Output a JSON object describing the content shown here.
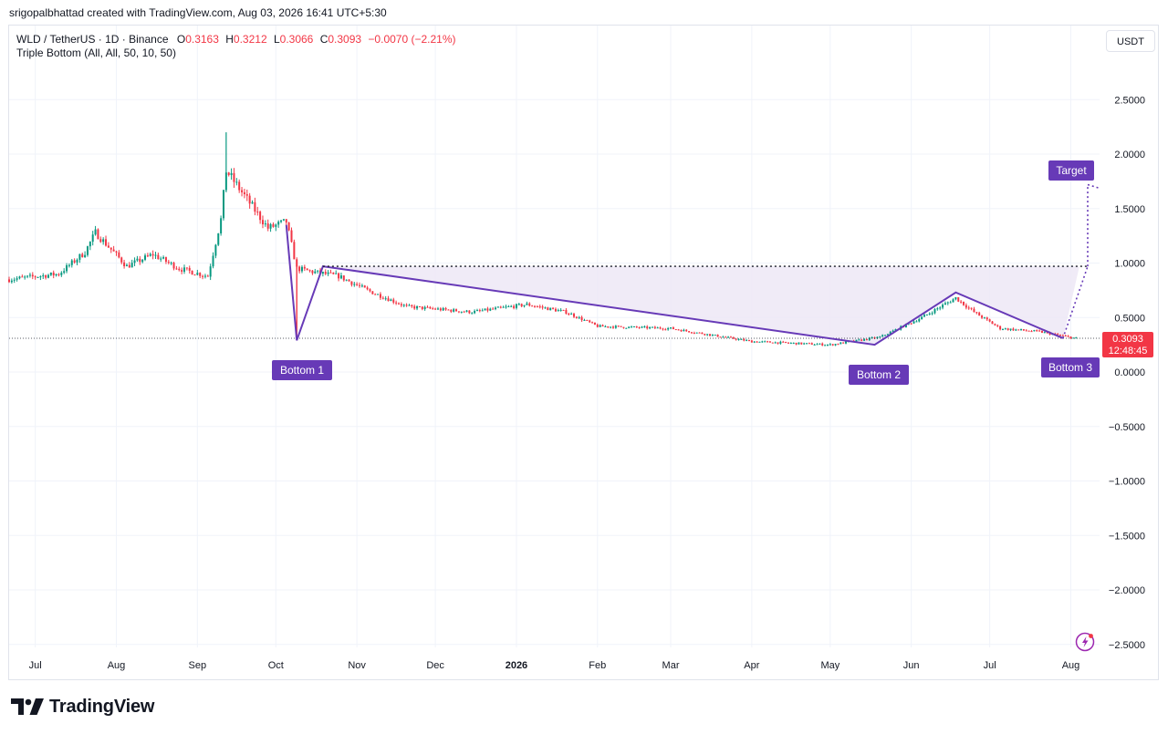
{
  "header": {
    "credit": "srigopalbhattad created with TradingView.com, Aug 03, 2026 16:41 UTC+5:30"
  },
  "legend": {
    "symbol": "WLD / TetherUS · 1D · Binance",
    "open_label": "O",
    "open": "0.3163",
    "high_label": "H",
    "high": "0.3212",
    "low_label": "L",
    "low": "0.3066",
    "close_label": "C",
    "close": "0.3093",
    "change": "−0.0070 (−2.21%)",
    "indicator": "Triple Bottom (All, All, 50, 10, 50)"
  },
  "currency_button": "USDT",
  "brand": {
    "name": "TradingView"
  },
  "price_badge": {
    "price": "0.3093",
    "countdown": "12:48:45",
    "color": "#f23645"
  },
  "colors": {
    "up": "#089981",
    "down": "#f23645",
    "pattern": "#673ab7",
    "fill": "#ede7f6",
    "grid": "#f0f3fa"
  },
  "chart_data": {
    "type": "candlestick",
    "ylim": [
      -2.6,
      2.8
    ],
    "y_ticks": [
      "2.5000",
      "2.0000",
      "1.5000",
      "1.0000",
      "0.5000",
      "0.0000",
      "−0.5000",
      "−1.0000",
      "−1.5000",
      "−2.0000",
      "−2.5000"
    ],
    "y_tick_values": [
      2.5,
      2.0,
      1.5,
      1.0,
      0.5,
      0.0,
      -0.5,
      -1.0,
      -1.5,
      -2.0,
      -2.5
    ],
    "x_ticks": [
      {
        "label": "Jul",
        "date": "2025-07-01",
        "bold": false
      },
      {
        "label": "Aug",
        "date": "2025-08-01",
        "bold": false
      },
      {
        "label": "Sep",
        "date": "2025-09-01",
        "bold": false
      },
      {
        "label": "Oct",
        "date": "2025-10-01",
        "bold": false
      },
      {
        "label": "Nov",
        "date": "2025-11-01",
        "bold": false
      },
      {
        "label": "Dec",
        "date": "2025-12-01",
        "bold": false
      },
      {
        "label": "2026",
        "date": "2026-01-01",
        "bold": true
      },
      {
        "label": "Feb",
        "date": "2026-02-01",
        "bold": false
      },
      {
        "label": "Mar",
        "date": "2026-03-01",
        "bold": false
      },
      {
        "label": "Apr",
        "date": "2026-04-01",
        "bold": false
      },
      {
        "label": "May",
        "date": "2026-05-01",
        "bold": false
      },
      {
        "label": "Jun",
        "date": "2026-06-01",
        "bold": false
      },
      {
        "label": "Jul",
        "date": "2026-07-01",
        "bold": false
      },
      {
        "label": "Aug",
        "date": "2026-08-01",
        "bold": false
      }
    ],
    "x_range": [
      "2025-06-21",
      "2026-08-12"
    ],
    "price_anchors": [
      {
        "date": "2025-06-21",
        "price": 0.85
      },
      {
        "date": "2025-07-10",
        "price": 0.9
      },
      {
        "date": "2025-07-20",
        "price": 1.1
      },
      {
        "date": "2025-07-24",
        "price": 1.28
      },
      {
        "date": "2025-08-05",
        "price": 0.97
      },
      {
        "date": "2025-08-15",
        "price": 1.08
      },
      {
        "date": "2025-08-25",
        "price": 0.95
      },
      {
        "date": "2025-09-05",
        "price": 0.88
      },
      {
        "date": "2025-09-10",
        "price": 1.4
      },
      {
        "date": "2025-09-12",
        "price": 1.85
      },
      {
        "date": "2025-09-18",
        "price": 1.65
      },
      {
        "date": "2025-09-28",
        "price": 1.32
      },
      {
        "date": "2025-10-05",
        "price": 1.38
      },
      {
        "date": "2025-10-09",
        "price": 0.95
      },
      {
        "date": "2025-10-15",
        "price": 0.92
      },
      {
        "date": "2025-10-25",
        "price": 0.88
      },
      {
        "date": "2025-11-05",
        "price": 0.75
      },
      {
        "date": "2025-11-20",
        "price": 0.6
      },
      {
        "date": "2025-12-15",
        "price": 0.55
      },
      {
        "date": "2026-01-05",
        "price": 0.62
      },
      {
        "date": "2026-01-20",
        "price": 0.55
      },
      {
        "date": "2026-02-01",
        "price": 0.42
      },
      {
        "date": "2026-03-01",
        "price": 0.4
      },
      {
        "date": "2026-04-01",
        "price": 0.28
      },
      {
        "date": "2026-05-01",
        "price": 0.25
      },
      {
        "date": "2026-05-20",
        "price": 0.32
      },
      {
        "date": "2026-06-05",
        "price": 0.5
      },
      {
        "date": "2026-06-18",
        "price": 0.68
      },
      {
        "date": "2026-06-25",
        "price": 0.55
      },
      {
        "date": "2026-07-05",
        "price": 0.4
      },
      {
        "date": "2026-07-20",
        "price": 0.37
      },
      {
        "date": "2026-08-03",
        "price": 0.309
      }
    ],
    "last_close": 0.3093,
    "pattern": {
      "name": "Triple Bottom",
      "zigzag": [
        {
          "date": "2025-10-05",
          "price": 1.35
        },
        {
          "date": "2025-10-09",
          "price": 0.29
        },
        {
          "date": "2025-10-19",
          "price": 0.97
        },
        {
          "date": "2026-05-18",
          "price": 0.25
        },
        {
          "date": "2026-06-18",
          "price": 0.73
        },
        {
          "date": "2026-07-29",
          "price": 0.31
        }
      ],
      "neckline": 0.97,
      "target_price": 1.72,
      "bottoms": [
        {
          "label": "Bottom 1",
          "date": "2025-10-09",
          "price": 0.29
        },
        {
          "label": "Bottom 2",
          "date": "2026-05-18",
          "price": 0.25
        },
        {
          "label": "Bottom 3",
          "date": "2026-07-29",
          "price": 0.31
        }
      ],
      "target_label": "Target"
    }
  }
}
